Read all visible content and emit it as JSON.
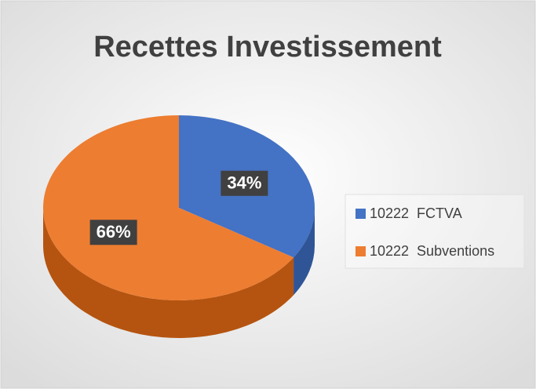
{
  "chart_data": {
    "type": "pie",
    "title": "Recettes Investissement",
    "categories": [
      "10222  FCTVA",
      "10222  Subventions"
    ],
    "values": [
      34,
      66
    ],
    "value_labels": [
      "34%",
      "66%"
    ],
    "colors": [
      "#4472c4",
      "#ed7d31"
    ],
    "legend": "right"
  }
}
